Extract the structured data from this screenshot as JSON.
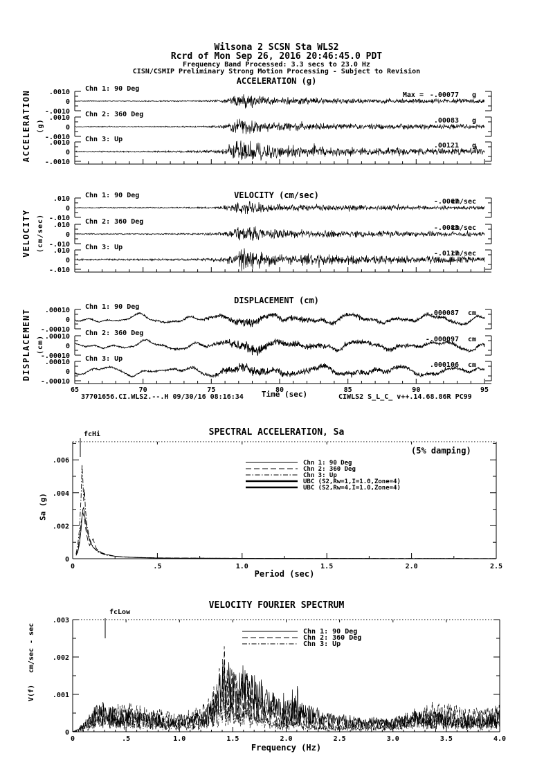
{
  "header": {
    "line1": "Wilsona 2    SCSN Sta WLS2",
    "line2": "Rcrd of Mon Sep 26, 2016 20:46:45.0 PDT",
    "line3": "Frequency Band Processed: 3.3 secs to 23.0 Hz",
    "line4": "CISN/CSMIP Preliminary Strong Motion Processing - Subject to Revision"
  },
  "footer": {
    "left": "37701656.CI.WLS2.--.H 09/30/16 08:16:34",
    "right": "CIWLS2  S_L_C_  v++.14.68.86R PC99"
  },
  "chart_data": {
    "traces": {
      "type": "line",
      "xlabel": "Time (sec)",
      "time_range": [
        65,
        95
      ],
      "time_ticks": [
        "65",
        "70",
        "75",
        "80",
        "85",
        "90",
        "95"
      ],
      "sections": [
        {
          "id": "acceleration",
          "title": "ACCELERATION (g)",
          "side_label": "ACCELERATION",
          "side_unit": "(g)",
          "scale": {
            "top": ".0010",
            "zero": "0",
            "bottom": "-.0010"
          },
          "kind": "noise",
          "envelope": [
            [
              65,
              0.05
            ],
            [
              68,
              0.055
            ],
            [
              70,
              0.06
            ],
            [
              72,
              0.07
            ],
            [
              74,
              0.09
            ],
            [
              75,
              0.13
            ],
            [
              75.8,
              0.2
            ],
            [
              76.4,
              0.5
            ],
            [
              76.9,
              0.85
            ],
            [
              77.4,
              1.0
            ],
            [
              78,
              0.9
            ],
            [
              78.6,
              0.72
            ],
            [
              79.3,
              0.55
            ],
            [
              80,
              0.48
            ],
            [
              81,
              0.52
            ],
            [
              82,
              0.42
            ],
            [
              83,
              0.46
            ],
            [
              84,
              0.38
            ],
            [
              85,
              0.42
            ],
            [
              86,
              0.34
            ],
            [
              87,
              0.38
            ],
            [
              88,
              0.32
            ],
            [
              89,
              0.35
            ],
            [
              90,
              0.3
            ],
            [
              91,
              0.33
            ],
            [
              92,
              0.29
            ],
            [
              93,
              0.32
            ],
            [
              94,
              0.28
            ],
            [
              95,
              0.27
            ]
          ],
          "rows": [
            {
              "channel": "Chn 1: 90 Deg",
              "peak_prefix": "Max =",
              "peak": "-.00077",
              "unit": "g",
              "peak_frac": 0.77,
              "seed": 11
            },
            {
              "channel": "Chn 2: 360 Deg",
              "peak": ".00083",
              "unit": "g",
              "peak_frac": 0.83,
              "seed": 22
            },
            {
              "channel": "Chn 3: Up",
              "peak": ".00121",
              "unit": "g",
              "peak_frac": 1.21,
              "seed": 33
            }
          ]
        },
        {
          "id": "velocity",
          "title": "VELOCITY (cm/sec)",
          "side_label": "VELOCITY",
          "side_unit": "(cm/sec)",
          "scale": {
            "top": ".010",
            "zero": "0",
            "bottom": "-.010"
          },
          "kind": "noise",
          "envelope": [
            [
              65,
              0.07
            ],
            [
              68,
              0.08
            ],
            [
              70,
              0.08
            ],
            [
              72,
              0.09
            ],
            [
              74,
              0.11
            ],
            [
              75,
              0.16
            ],
            [
              75.8,
              0.25
            ],
            [
              76.4,
              0.55
            ],
            [
              77,
              0.9
            ],
            [
              77.6,
              1.0
            ],
            [
              78.2,
              0.92
            ],
            [
              78.9,
              0.75
            ],
            [
              79.6,
              0.6
            ],
            [
              80.5,
              0.5
            ],
            [
              81.5,
              0.55
            ],
            [
              82.5,
              0.45
            ],
            [
              83.5,
              0.5
            ],
            [
              84.5,
              0.4
            ],
            [
              85.5,
              0.44
            ],
            [
              86.5,
              0.36
            ],
            [
              88,
              0.4
            ],
            [
              89.5,
              0.33
            ],
            [
              91,
              0.36
            ],
            [
              92.5,
              0.3
            ],
            [
              94,
              0.32
            ],
            [
              95,
              0.28
            ]
          ],
          "rows": [
            {
              "channel": "Chn 1: 90 Deg",
              "peak": "-.0067",
              "unit": "cm/sec",
              "peak_frac": 0.67,
              "seed": 44
            },
            {
              "channel": "Chn 2: 360 Deg",
              "peak": "-.0083",
              "unit": "cm/sec",
              "peak_frac": 0.83,
              "seed": 55
            },
            {
              "channel": "Chn 3: Up",
              "peak": "-.0117",
              "unit": "cm/sec",
              "peak_frac": 1.17,
              "seed": 66
            }
          ]
        },
        {
          "id": "displacement",
          "title": "DISPLACEMENT (cm)",
          "side_label": "DISPLACEMENT",
          "side_unit": "(cm)",
          "scale": {
            "top": ".00010",
            "zero": "0",
            "bottom": "-.00010"
          },
          "kind": "walk",
          "envelope": [
            [
              65,
              0.12
            ],
            [
              68,
              0.13
            ],
            [
              70,
              0.15
            ],
            [
              72,
              0.17
            ],
            [
              74,
              0.2
            ],
            [
              75,
              0.3
            ],
            [
              76,
              0.5
            ],
            [
              76.8,
              0.8
            ],
            [
              77.5,
              1.0
            ],
            [
              78.2,
              0.85
            ],
            [
              79,
              0.65
            ],
            [
              80,
              0.55
            ],
            [
              81.5,
              0.5
            ],
            [
              83,
              0.45
            ],
            [
              85,
              0.42
            ],
            [
              87,
              0.4
            ],
            [
              89,
              0.36
            ],
            [
              91,
              0.33
            ],
            [
              93,
              0.3
            ],
            [
              95,
              0.28
            ]
          ],
          "rows": [
            {
              "channel": "Chn 1: 90 Deg",
              "peak": "-.000087",
              "unit": "cm",
              "peak_frac": 0.87,
              "seed": 77
            },
            {
              "channel": "Chn 2: 360 Deg",
              "peak": "-.000097",
              "unit": "cm",
              "peak_frac": 0.97,
              "seed": 88
            },
            {
              "channel": "Chn 3: Up",
              "peak": ".000106",
              "unit": "cm",
              "peak_frac": 1.06,
              "seed": 99
            }
          ]
        }
      ]
    },
    "sa": {
      "type": "line",
      "title": "SPECTRAL ACCELERATION, Sa",
      "damping_note": "(5% damping)",
      "marker": "fcHi",
      "ylabel": "Sa (g)",
      "xlabel": "Period (sec)",
      "xlim": [
        0,
        2.5
      ],
      "ylim": [
        0,
        0.0071
      ],
      "yticks": [
        "0",
        ".002",
        ".004",
        ".006"
      ],
      "xticks": [
        "0",
        ".5",
        "1.0",
        "1.5",
        "2.0",
        "2.5"
      ],
      "legend": [
        {
          "label": "Chn 1: 90 Deg",
          "style": "solid"
        },
        {
          "label": "Chn 2: 360 Deg",
          "style": "dash"
        },
        {
          "label": "Chn 3: Up",
          "style": "dashdot"
        },
        {
          "label": "UBC (S2,Rw=1,I=1.0,Zone=4)",
          "style": "thick"
        },
        {
          "label": "UBC (S2,Rw=4,I=1.0,Zone=4)",
          "style": "thick"
        }
      ],
      "series": [
        {
          "name": "Chn 1: 90 Deg",
          "style": "solid",
          "points": [
            [
              0.02,
              0.0002
            ],
            [
              0.03,
              0.0004
            ],
            [
              0.04,
              0.0009
            ],
            [
              0.05,
              0.0018
            ],
            [
              0.055,
              0.0025
            ],
            [
              0.06,
              0.003
            ],
            [
              0.065,
              0.0031
            ],
            [
              0.07,
              0.0027
            ],
            [
              0.08,
              0.002
            ],
            [
              0.09,
              0.0015
            ],
            [
              0.1,
              0.0011
            ],
            [
              0.12,
              0.0007
            ],
            [
              0.15,
              0.00045
            ],
            [
              0.2,
              0.00025
            ],
            [
              0.25,
              0.00015
            ],
            [
              0.3,
              0.0001
            ],
            [
              0.4,
              6e-05
            ],
            [
              0.5,
              4e-05
            ],
            [
              0.7,
              3e-05
            ],
            [
              1.0,
              2e-05
            ],
            [
              1.5,
              1.5e-05
            ],
            [
              2.0,
              1e-05
            ],
            [
              2.5,
              1e-05
            ]
          ]
        },
        {
          "name": "Chn 2: 360 Deg",
          "style": "dash",
          "points": [
            [
              0.02,
              0.0002
            ],
            [
              0.03,
              0.0005
            ],
            [
              0.04,
              0.0012
            ],
            [
              0.05,
              0.0022
            ],
            [
              0.06,
              0.0028
            ],
            [
              0.07,
              0.0024
            ],
            [
              0.08,
              0.0016
            ],
            [
              0.09,
              0.0011
            ],
            [
              0.1,
              0.0008
            ],
            [
              0.12,
              0.0012
            ],
            [
              0.14,
              0.0006
            ],
            [
              0.18,
              0.0003
            ],
            [
              0.25,
              0.00015
            ],
            [
              0.35,
              8e-05
            ],
            [
              0.5,
              5e-05
            ],
            [
              0.8,
              3e-05
            ],
            [
              1.2,
              2e-05
            ],
            [
              2.5,
              1e-05
            ]
          ]
        },
        {
          "name": "Chn 3: Up",
          "style": "dashdot",
          "points": [
            [
              0.02,
              0.0003
            ],
            [
              0.03,
              0.0008
            ],
            [
              0.04,
              0.0018
            ],
            [
              0.05,
              0.0038
            ],
            [
              0.055,
              0.0057
            ],
            [
              0.06,
              0.0048
            ],
            [
              0.065,
              0.0035
            ],
            [
              0.07,
              0.0042
            ],
            [
              0.075,
              0.003
            ],
            [
              0.085,
              0.002
            ],
            [
              0.1,
              0.0012
            ],
            [
              0.12,
              0.0007
            ],
            [
              0.15,
              0.0004
            ],
            [
              0.2,
              0.0002
            ],
            [
              0.3,
              0.0001
            ],
            [
              0.5,
              4e-05
            ],
            [
              1.0,
              2e-05
            ],
            [
              2.5,
              1e-05
            ]
          ]
        }
      ]
    },
    "fourier": {
      "type": "line",
      "title": "VELOCITY FOURIER SPECTRUM",
      "marker": "fcLow",
      "ylabel_unit": "cm/sec - sec",
      "ylabel": "V(f)",
      "xlabel": "Frequency (Hz)",
      "xlim": [
        0,
        4.0
      ],
      "ylim": [
        0,
        0.003
      ],
      "yticks": [
        "0",
        ".001",
        ".002",
        ".003"
      ],
      "xticks": [
        "0",
        ".5",
        "1.0",
        "1.5",
        "2.0",
        "2.5",
        "3.0",
        "3.5",
        "4.0"
      ],
      "envelope": [
        [
          0,
          0
        ],
        [
          0.05,
          0.0001
        ],
        [
          0.12,
          0.0004
        ],
        [
          0.2,
          0.0009
        ],
        [
          0.28,
          0.0011
        ],
        [
          0.4,
          0.0009
        ],
        [
          0.55,
          0.0009
        ],
        [
          0.7,
          0.0008
        ],
        [
          0.85,
          0.0006
        ],
        [
          1.0,
          0.0005
        ],
        [
          1.15,
          0.0006
        ],
        [
          1.3,
          0.001
        ],
        [
          1.42,
          0.0023
        ],
        [
          1.5,
          0.0018
        ],
        [
          1.6,
          0.0019
        ],
        [
          1.7,
          0.0016
        ],
        [
          1.8,
          0.0012
        ],
        [
          1.95,
          0.0009
        ],
        [
          2.1,
          0.0012
        ],
        [
          2.2,
          0.0007
        ],
        [
          2.4,
          0.0005
        ],
        [
          2.7,
          0.00045
        ],
        [
          3.0,
          0.0005
        ],
        [
          3.2,
          0.0008
        ],
        [
          3.45,
          0.0009
        ],
        [
          3.6,
          0.0007
        ],
        [
          3.8,
          0.0006
        ],
        [
          4.0,
          0.0007
        ]
      ],
      "channels": [
        {
          "name": "Chn 1: 90 Deg",
          "style": "solid",
          "gain": 1.0,
          "seed": 301
        },
        {
          "name": "Chn 2: 360 Deg",
          "style": "dash",
          "gain": 0.95,
          "seed": 302
        },
        {
          "name": "Chn 3: Up",
          "style": "dashdot",
          "gain": 0.45,
          "seed": 303
        }
      ]
    }
  }
}
